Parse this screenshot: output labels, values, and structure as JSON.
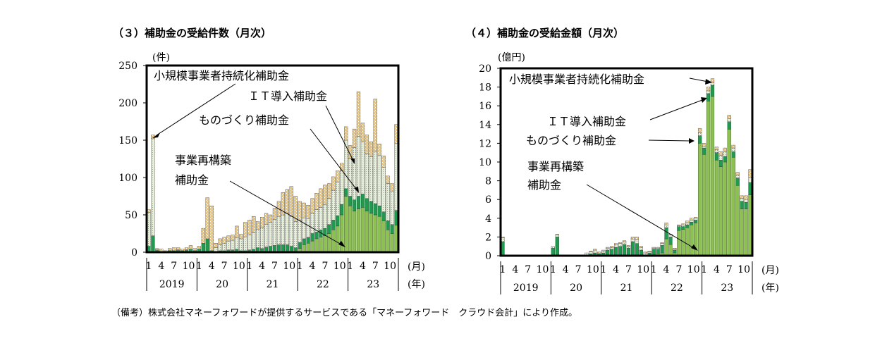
{
  "colors": {
    "small_biz": "#f7c55d",
    "it": "#dfe7cf",
    "monozukuri": "#1f9a4e",
    "restructure": "#8cc152",
    "frame": "#000000"
  },
  "note": "（備考）株式会社マネーフォワードが提供するサービスである「マネーフォワード　クラウド会計」により作成。",
  "chart_data": [
    {
      "type": "bar",
      "stacked": true,
      "title": "（３）補助金の受給件数（月次）",
      "ylabel": "(件)",
      "ylim": [
        0,
        250
      ],
      "yticks": [
        "0",
        "50",
        "100",
        "150",
        "200",
        "250"
      ],
      "month_ticks": [
        "1",
        "4",
        "7",
        "10",
        "1",
        "4",
        "7",
        "10",
        "1",
        "4",
        "7",
        "10",
        "1",
        "4",
        "7",
        "10",
        "1",
        "4",
        "7",
        "10"
      ],
      "year_labels": [
        "2019",
        "20",
        "21",
        "22",
        "23"
      ],
      "x_unit_month": "(月)",
      "x_unit_year": "(年)",
      "annotations": [
        {
          "text": "小規模事業者持続化補助金"
        },
        {
          "text": "ＩＴ導入補助金"
        },
        {
          "text": "ものづくり補助金"
        },
        {
          "text": "事業再構築"
        },
        {
          "text": "補助金"
        }
      ],
      "series": [
        {
          "name": "事業再構築補助金",
          "values": [
            0,
            0,
            0,
            0,
            0,
            0,
            0,
            0,
            0,
            0,
            0,
            0,
            0,
            0,
            0,
            0,
            0,
            0,
            0,
            0,
            0,
            0,
            0,
            0,
            0,
            0,
            0,
            0,
            0,
            0,
            0,
            0,
            0,
            0,
            0,
            0,
            5,
            10,
            12,
            15,
            18,
            20,
            22,
            25,
            30,
            35,
            50,
            75,
            62,
            55,
            58,
            60,
            55,
            52,
            50,
            48,
            42,
            30,
            25,
            36
          ]
        },
        {
          "name": "ものづくり補助金",
          "values": [
            8,
            22,
            3,
            1,
            1,
            2,
            2,
            3,
            2,
            3,
            4,
            2,
            4,
            12,
            18,
            2,
            1,
            2,
            2,
            3,
            3,
            4,
            2,
            2,
            3,
            4,
            6,
            5,
            7,
            8,
            9,
            10,
            10,
            10,
            8,
            6,
            8,
            8,
            8,
            10,
            9,
            10,
            10,
            12,
            13,
            14,
            14,
            10,
            13,
            15,
            17,
            18,
            17,
            16,
            15,
            14,
            12,
            12,
            12,
            20
          ]
        },
        {
          "name": "ＩＴ導入補助金",
          "values": [
            45,
            130,
            0,
            0,
            0,
            0,
            0,
            0,
            0,
            0,
            0,
            0,
            0,
            0,
            0,
            0,
            5,
            8,
            10,
            12,
            13,
            15,
            16,
            18,
            20,
            22,
            25,
            28,
            30,
            32,
            35,
            38,
            40,
            42,
            40,
            35,
            30,
            28,
            25,
            27,
            30,
            30,
            32,
            35,
            40,
            45,
            45,
            65,
            50,
            70,
            80,
            70,
            60,
            60,
            70,
            68,
            60,
            50,
            45,
            90
          ]
        },
        {
          "name": "小規模事業者持続化補助金",
          "values": [
            4,
            5,
            2,
            3,
            1,
            3,
            4,
            3,
            2,
            3,
            5,
            3,
            4,
            20,
            55,
            60,
            6,
            8,
            8,
            7,
            7,
            16,
            6,
            20,
            20,
            22,
            10,
            14,
            15,
            10,
            15,
            20,
            30,
            32,
            40,
            34,
            25,
            20,
            18,
            20,
            22,
            25,
            26,
            20,
            18,
            15,
            10,
            18,
            18,
            25,
            60,
            25,
            25,
            20,
            70,
            15,
            15,
            10,
            10,
            25
          ]
        }
      ]
    },
    {
      "type": "bar",
      "stacked": true,
      "title": "（４）補助金の受給金額（月次）",
      "ylabel": "(億円)",
      "ylim": [
        0,
        20
      ],
      "yticks": [
        "0",
        "2",
        "4",
        "6",
        "8",
        "10",
        "12",
        "14",
        "16",
        "18",
        "20"
      ],
      "month_ticks": [
        "1",
        "4",
        "7",
        "10",
        "1",
        "4",
        "7",
        "10",
        "1",
        "4",
        "7",
        "10",
        "1",
        "4",
        "7",
        "10",
        "1",
        "4",
        "7",
        "10"
      ],
      "year_labels": [
        "2019",
        "20",
        "21",
        "22",
        "23"
      ],
      "x_unit_month": "(月)",
      "x_unit_year": "(年)",
      "annotations": [
        {
          "text": "小規模事業者持続化補助金"
        },
        {
          "text": "ＩＴ導入補助金"
        },
        {
          "text": "ものづくり補助金"
        },
        {
          "text": "事業再構築"
        },
        {
          "text": "補助金"
        }
      ],
      "series": [
        {
          "name": "事業再構築補助金",
          "values": [
            0,
            0,
            0,
            0,
            0,
            0,
            0,
            0,
            0,
            0,
            0,
            0,
            0,
            0,
            0,
            0,
            0,
            0,
            0,
            0,
            0,
            0,
            0,
            0,
            0,
            0,
            0,
            0,
            0,
            0,
            0,
            0,
            0,
            0,
            0,
            0,
            0.1,
            0.2,
            0.3,
            1.8,
            1.2,
            0.3,
            2.7,
            2.8,
            3.0,
            3.3,
            3.5,
            12.0,
            10.8,
            16.5,
            17.0,
            10.2,
            9.5,
            10.0,
            13.5,
            10.5,
            7.5,
            5.0,
            5.0,
            6.5
          ]
        },
        {
          "name": "ものづくり補助金",
          "values": [
            1.5,
            0.1,
            0,
            0,
            0,
            0,
            0,
            0,
            0,
            0,
            0,
            0,
            0.8,
            2.0,
            0.1,
            0,
            0,
            0,
            0,
            0,
            0,
            0.2,
            0.3,
            0.2,
            0.3,
            0.6,
            0.7,
            0.9,
            1.0,
            1.2,
            0.8,
            1.5,
            1.3,
            0.6,
            0.1,
            0.3,
            0.6,
            0.5,
            0.8,
            1.2,
            0.8,
            0.3,
            0.4,
            0.3,
            0.3,
            0.3,
            0.3,
            0.8,
            0.7,
            0.8,
            1.2,
            0.8,
            0.7,
            0.6,
            0.8,
            0.6,
            0.8,
            0.8,
            0.7,
            1.3
          ]
        },
        {
          "name": "ＩＴ導入補助金",
          "values": [
            0.4,
            0,
            0,
            0,
            0,
            0,
            0,
            0,
            0,
            0,
            0,
            0,
            0.2,
            0.2,
            0,
            0,
            0,
            0,
            0,
            0.1,
            0.3,
            0.2,
            0.3,
            0.1,
            0.2,
            0.2,
            0.2,
            0.3,
            0.3,
            0.3,
            0.2,
            0.3,
            0.4,
            0.3,
            0.2,
            0.1,
            0.1,
            0.1,
            0.2,
            0.3,
            0.2,
            0.1,
            0.1,
            0.2,
            0.2,
            0.2,
            0.2,
            0.3,
            0.2,
            0.3,
            0.3,
            0.3,
            0.5,
            0.5,
            0.3,
            0.4,
            0.3,
            0.3,
            0.3,
            0.6
          ]
        },
        {
          "name": "小規模事業者持続化補助金",
          "values": [
            0.1,
            0,
            0,
            0,
            0,
            0,
            0,
            0,
            0,
            0,
            0,
            0,
            0,
            0.1,
            0,
            0,
            0,
            0,
            0,
            0,
            0,
            0.1,
            0.1,
            0.1,
            0.1,
            0.1,
            0.1,
            0.1,
            0.1,
            0.1,
            0.1,
            0.2,
            0.3,
            0.1,
            0.1,
            0.1,
            0.1,
            0.1,
            0.1,
            0.2,
            0.1,
            0.1,
            0.1,
            0.1,
            0.2,
            0.2,
            0.1,
            0.5,
            0.3,
            0.4,
            0.4,
            0.3,
            0.4,
            0.4,
            0.4,
            0.3,
            0.3,
            0.3,
            0.4,
            0.8
          ]
        }
      ]
    }
  ]
}
